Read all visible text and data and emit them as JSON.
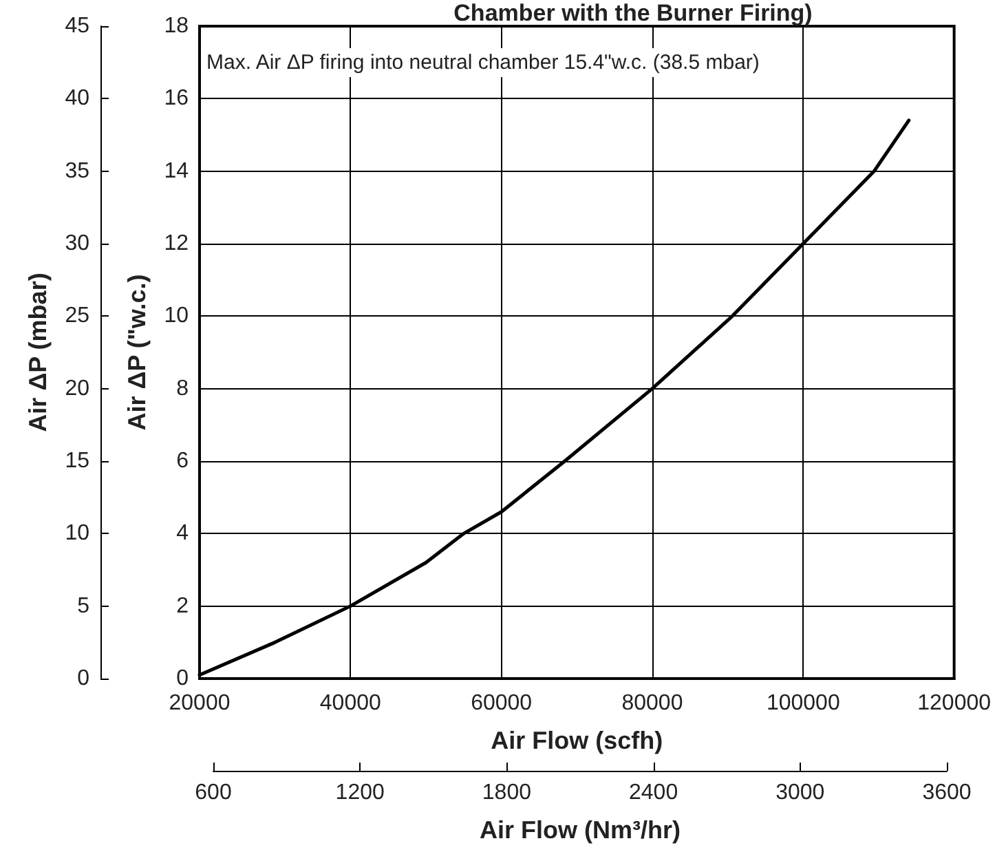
{
  "chart_data": {
    "type": "line",
    "title": "Chamber with the Burner Firing)",
    "xlabel": "Air Flow (scfh)",
    "ylabel": "Air ΔP (\"w.c.)",
    "y2label": "Air ΔP (mbar)",
    "x2label": "Air Flow (Nm³/hr)",
    "annotations": [
      "Max. Air ΔP firing into neutral chamber 15.4\"w.c. (38.5 mbar)"
    ],
    "x": [
      20000,
      30000,
      40000,
      50000,
      55000,
      60000,
      68400,
      80000,
      90600,
      100000,
      109400,
      114000
    ],
    "series": [
      {
        "color": "#000000",
        "values": [
          0.1,
          1.0,
          2.0,
          3.2,
          4.0,
          4.6,
          6.0,
          8.0,
          10.0,
          12.0,
          14.0,
          15.4
        ]
      }
    ],
    "xlim": [
      20000,
      120000
    ],
    "xticks": [
      20000,
      40000,
      60000,
      80000,
      100000,
      120000
    ],
    "ylim": [
      0,
      18
    ],
    "yticks": [
      0,
      2,
      4,
      6,
      8,
      10,
      12,
      14,
      16,
      18
    ],
    "y2lim": [
      0,
      45
    ],
    "y2ticks": [
      0,
      5,
      10,
      15,
      20,
      25,
      30,
      35,
      40,
      45
    ],
    "x2lim": [
      600,
      3600
    ],
    "x2ticks": [
      600,
      1200,
      1800,
      2400,
      3000,
      3600
    ],
    "grid": true,
    "marker": "none",
    "line_style": "solid"
  }
}
